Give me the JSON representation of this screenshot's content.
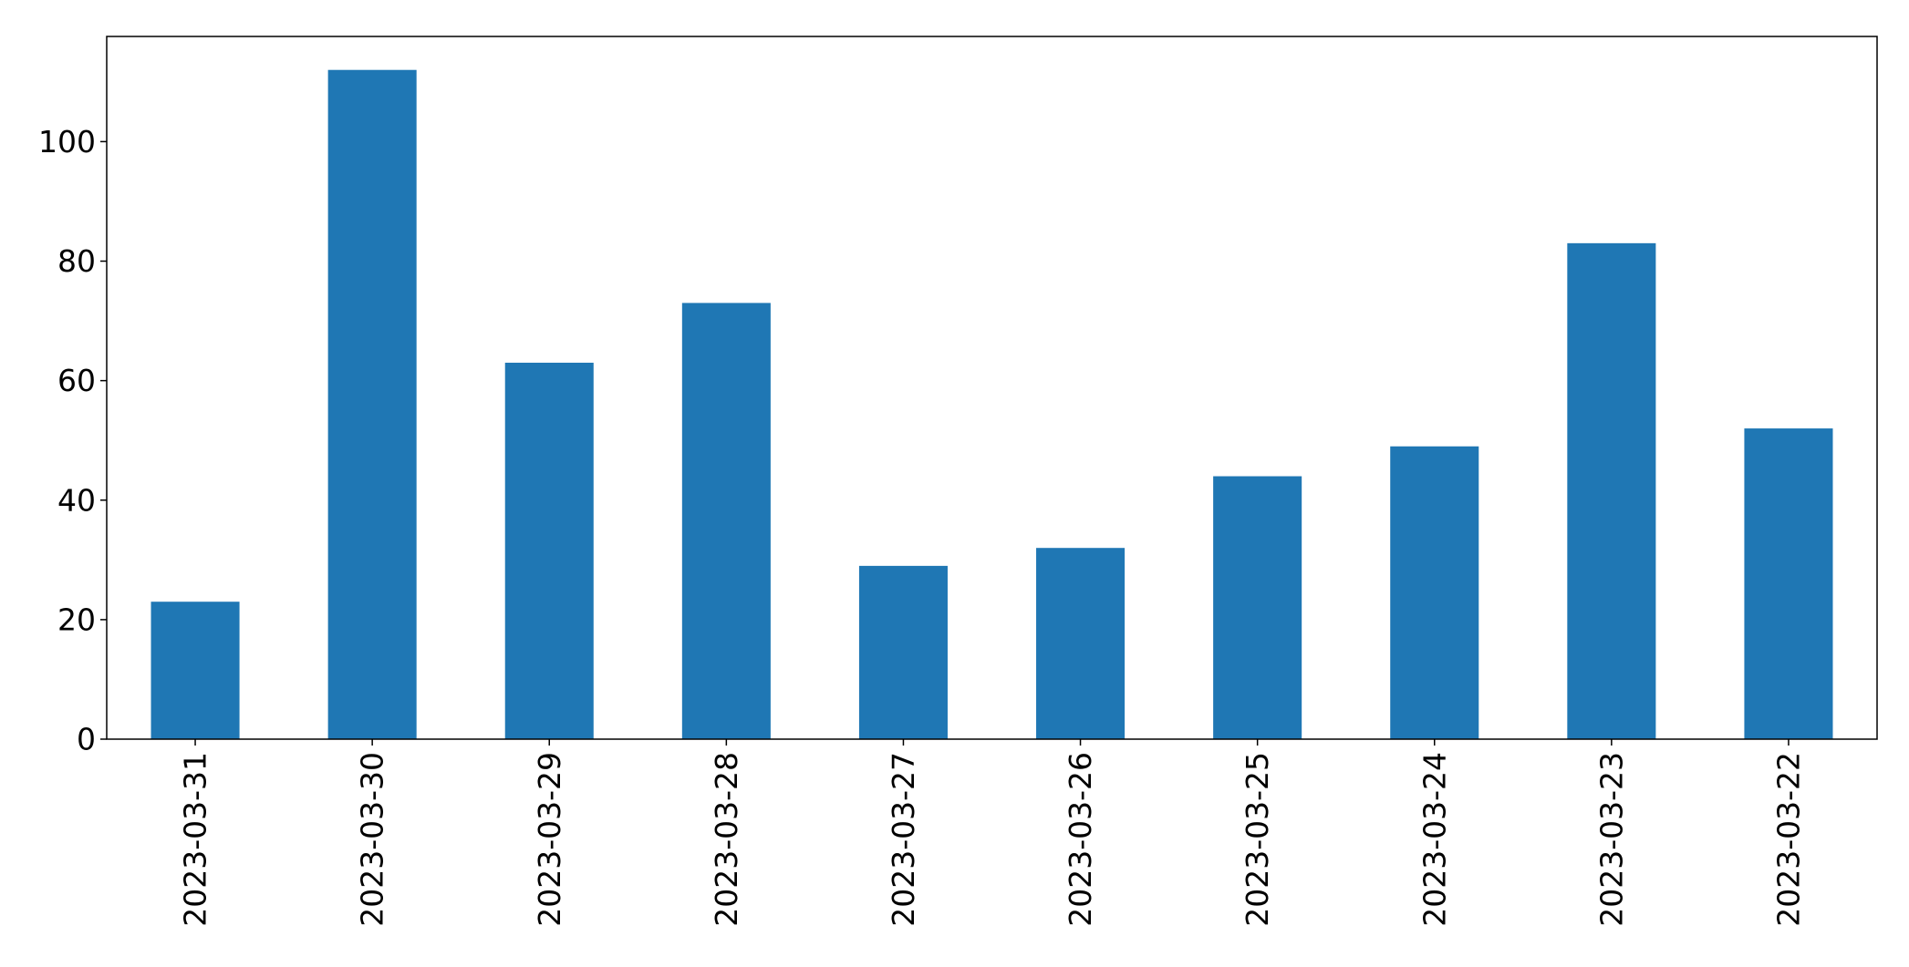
{
  "chart_data": {
    "type": "bar",
    "categories": [
      "2023-03-31",
      "2023-03-30",
      "2023-03-29",
      "2023-03-28",
      "2023-03-27",
      "2023-03-26",
      "2023-03-25",
      "2023-03-24",
      "2023-03-23",
      "2023-03-22"
    ],
    "values": [
      23,
      112,
      63,
      73,
      29,
      32,
      44,
      49,
      83,
      52
    ],
    "title": "",
    "xlabel": "",
    "ylabel": "",
    "ylim": [
      0,
      117.6
    ],
    "yticks": [
      0,
      20,
      40,
      60,
      80,
      100
    ],
    "grid": false,
    "bar_color": "#1f77b4",
    "x_tick_rotation": "vertical"
  }
}
